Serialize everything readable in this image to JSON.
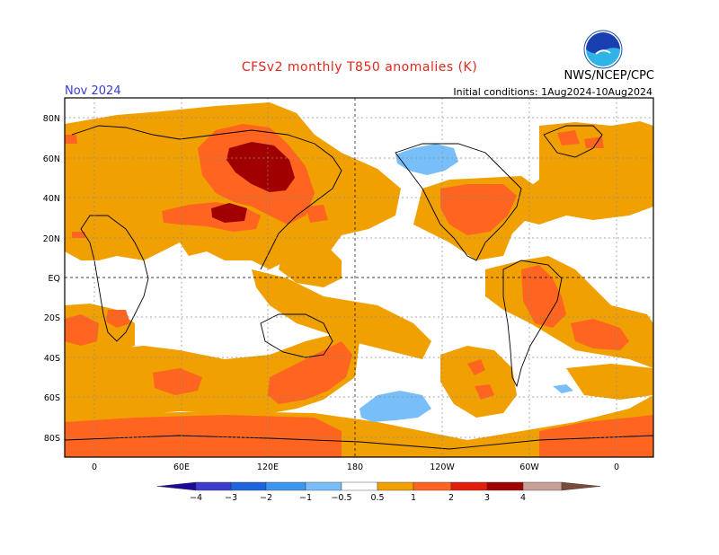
{
  "title": "CFSv2 monthly T850 anomalies (K)",
  "month": "Nov 2024",
  "initial_conditions": "Initial conditions: 1Aug2024-10Aug2024",
  "agency": "NWS/NCEP/CPC",
  "logo_text": "NOAA",
  "lat_labels": [
    "80N",
    "60N",
    "40N",
    "20N",
    "EQ",
    "20S",
    "40S",
    "60S",
    "80S"
  ],
  "lon_labels": [
    "0",
    "60E",
    "120E",
    "180",
    "120W",
    "60W",
    "0"
  ],
  "colorbar": {
    "labels": [
      "−4",
      "−3",
      "−2",
      "−1",
      "−0.5",
      "0.5",
      "1",
      "2",
      "3",
      "4"
    ],
    "colors": [
      "#1c0a96",
      "#3c3ccc",
      "#1e64dc",
      "#3c96f0",
      "#78bef8",
      "#ffffff",
      "#f0a000",
      "#ff6420",
      "#e01e0a",
      "#a00000",
      "#c8a096",
      "#7a4a3a"
    ]
  }
}
